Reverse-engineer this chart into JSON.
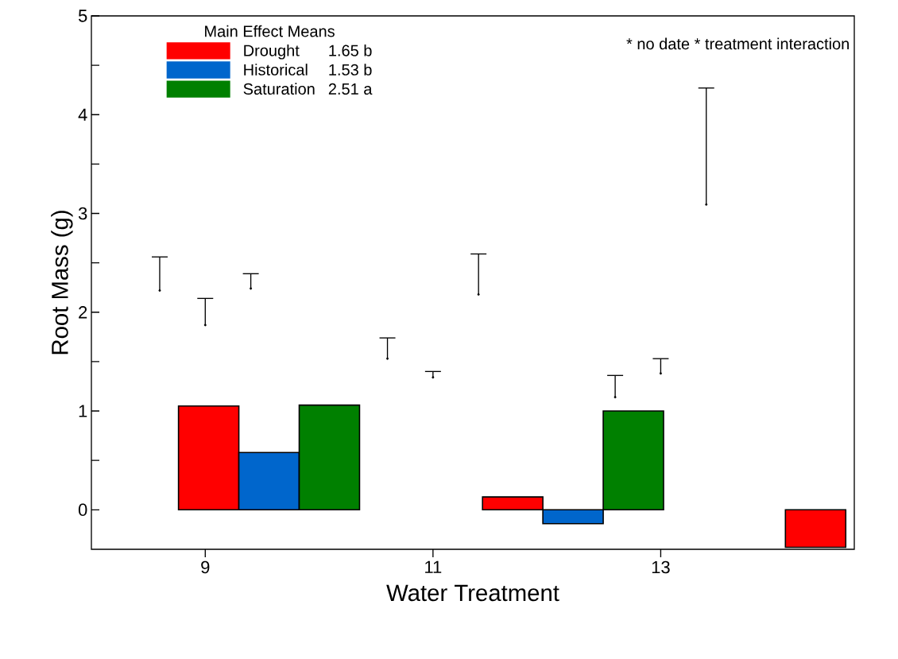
{
  "chart_data": {
    "type": "bar",
    "ylabel": "Root Mass (g)",
    "xlabel": "Water Treatment",
    "legend_title": "Main Effect Means",
    "legend": "top left",
    "annotations": [
      "* no date * treatment interaction",
      "1.65 b",
      "1.53 b",
      "2.51 a"
    ],
    "xlim": [
      8,
      14.7
    ],
    "xticks": [
      9,
      11,
      13
    ],
    "ylim": [
      -0.4,
      5
    ],
    "yticks": [
      0,
      1,
      2,
      3,
      4,
      5
    ],
    "series": [
      {
        "name": "Drought",
        "color": "#ff0000",
        "x": [
          9.03,
          11.7,
          14.36
        ],
        "values": [
          1.05,
          0.13,
          -0.38
        ]
      },
      {
        "name": "Historical",
        "color": "#0066cc",
        "x": [
          9.56,
          12.23
        ],
        "values": [
          0.58,
          -0.14
        ]
      },
      {
        "name": "Saturation",
        "color": "#008000",
        "x": [
          10.09,
          12.76
        ],
        "values": [
          1.06,
          1.0
        ]
      },
      {
        "type": "scatter",
        "marker": "circle",
        "color": "#000000",
        "x": [
          8.6,
          9.0,
          9.4,
          10.6,
          11.0,
          11.4,
          12.6,
          13.0,
          13.4
        ],
        "values": [
          2.22,
          1.87,
          2.24,
          1.53,
          1.34,
          2.18,
          1.14,
          1.38,
          3.09
        ],
        "errors": [
          [
            2.22,
            2.56
          ],
          [
            1.87,
            2.14
          ],
          [
            2.24,
            2.39
          ],
          [
            1.53,
            1.74
          ],
          [
            1.34,
            1.4
          ],
          [
            2.18,
            2.59
          ],
          [
            1.14,
            1.36
          ],
          [
            1.38,
            1.53
          ],
          [
            3.09,
            4.27
          ]
        ]
      }
    ]
  }
}
